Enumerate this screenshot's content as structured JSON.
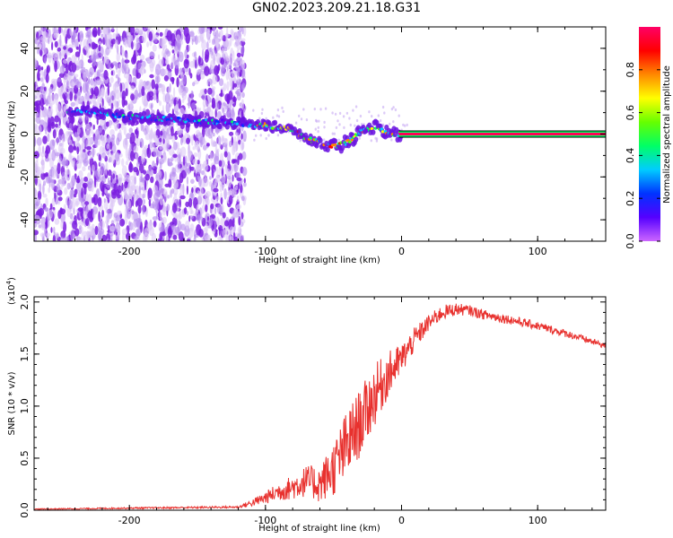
{
  "title": "GN02.2023.209.21.18.G31",
  "colors": {
    "snr_line": "#e8312e",
    "axis": "#000000",
    "spectro_purple": "#7b1fe0",
    "spectro_light": "#d8c2f5"
  },
  "chart_data": [
    {
      "type": "heatmap",
      "name": "spectrogram",
      "xlabel": "Height of straight line (km)",
      "ylabel": "Frequency (Hz)",
      "xlim": [
        -270,
        150
      ],
      "ylim": [
        -50,
        50
      ],
      "xticks": [
        "-200",
        "-100",
        "0",
        "100"
      ],
      "xtick_values": [
        -200,
        -100,
        0,
        100
      ],
      "yticks": [
        "-40",
        "-20",
        "0",
        "20",
        "40"
      ],
      "ytick_values": [
        -40,
        -20,
        0,
        20,
        40
      ],
      "colorbar": {
        "label": "Normalized spectral amplitude",
        "range": [
          0,
          1
        ],
        "ticks": [
          "0.0",
          "0.2",
          "0.4",
          "0.6",
          "0.8"
        ],
        "tick_values": [
          0.0,
          0.2,
          0.4,
          0.6,
          0.8
        ],
        "stops": [
          "#cc66ff",
          "#5500ff",
          "#0033ff",
          "#00ccff",
          "#00ff66",
          "#66ff00",
          "#ffff00",
          "#ff8800",
          "#ff0000",
          "#ff0066"
        ]
      },
      "ridge": {
        "x": [
          -240,
          -200,
          -150,
          -120,
          -100,
          -80,
          -70,
          -60,
          -50,
          -40,
          -30,
          -20,
          -10,
          0,
          50,
          100,
          150
        ],
        "freq": [
          11,
          8,
          6,
          5,
          4,
          2,
          -2,
          -4,
          -6,
          -4,
          1,
          3,
          0.5,
          0,
          0,
          0,
          0
        ]
      }
    },
    {
      "type": "line",
      "name": "snr",
      "xlabel": "Height of straight line (km)",
      "ylabel": "SNR (10 * v/v)",
      "multiplier_label": "(x10",
      "multiplier_exp": "4",
      "multiplier_close": ")",
      "xlim": [
        -270,
        150
      ],
      "ylim": [
        0,
        2.05
      ],
      "xticks": [
        "-200",
        "-100",
        "0",
        "100"
      ],
      "xtick_values": [
        -200,
        -100,
        0,
        100
      ],
      "yticks": [
        "0.0",
        "0.5",
        "1.0",
        "1.5",
        "2.0"
      ],
      "ytick_values": [
        0.0,
        0.5,
        1.0,
        1.5,
        2.0
      ],
      "envelope": {
        "x": [
          -270,
          -200,
          -120,
          -110,
          -100,
          -90,
          -80,
          -70,
          -60,
          -50,
          -40,
          -30,
          -20,
          -10,
          0,
          10,
          20,
          30,
          40,
          50,
          60,
          80,
          100,
          120,
          140,
          150
        ],
        "y": [
          0.01,
          0.02,
          0.03,
          0.07,
          0.12,
          0.18,
          0.22,
          0.28,
          0.25,
          0.4,
          0.62,
          0.85,
          1.1,
          1.3,
          1.45,
          1.65,
          1.8,
          1.9,
          1.93,
          1.92,
          1.88,
          1.83,
          1.77,
          1.7,
          1.62,
          1.58
        ]
      },
      "noise": {
        "x": [
          -270,
          -120,
          -100,
          -80,
          -60,
          -40,
          -20,
          0,
          20,
          50,
          100,
          150
        ],
        "amp": [
          0.005,
          0.01,
          0.06,
          0.12,
          0.18,
          0.35,
          0.3,
          0.15,
          0.08,
          0.05,
          0.04,
          0.03
        ]
      }
    }
  ]
}
